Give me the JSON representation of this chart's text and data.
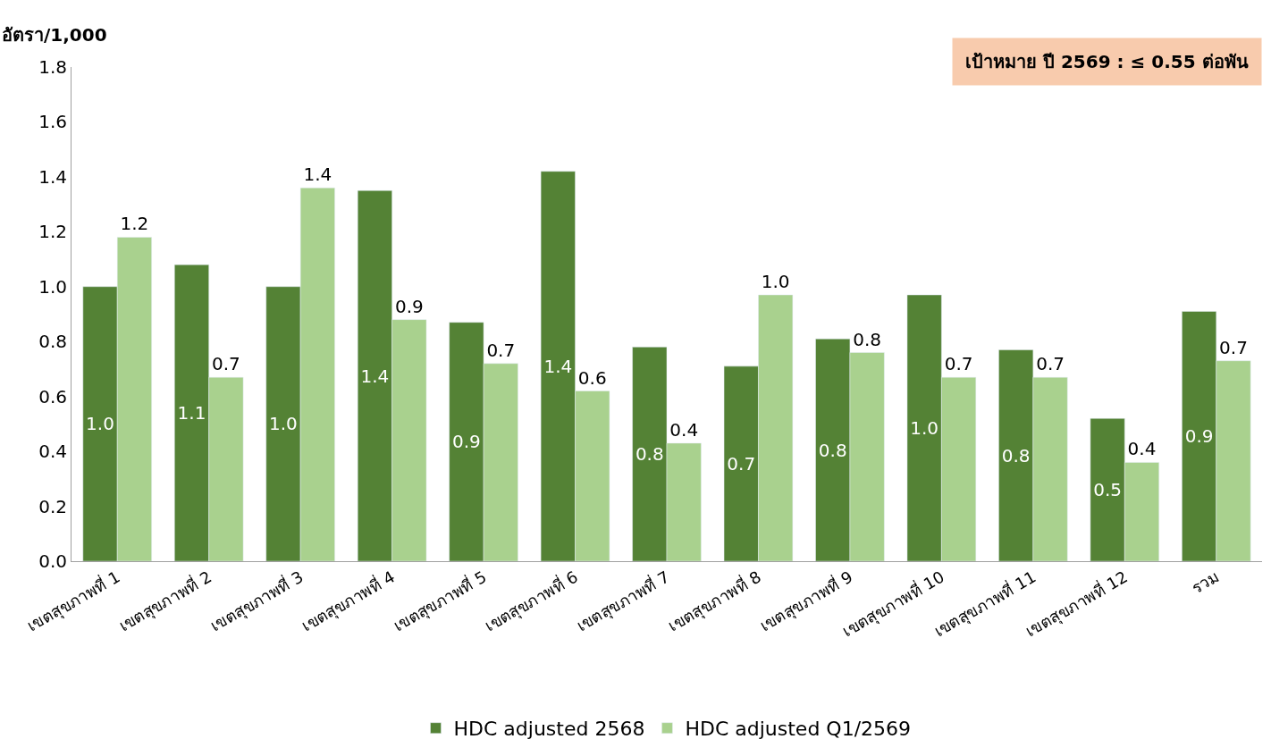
{
  "chart_data": {
    "type": "bar",
    "ylabel": "อัตรา/1,000",
    "categories": [
      "เขตสุขภาพที่ 1",
      "เขตสุขภาพที่ 2",
      "เขตสุขภาพที่ 3",
      "เขตสุขภาพที่ 4",
      "เขตสุขภาพที่ 5",
      "เขตสุขภาพที่ 6",
      "เขตสุขภาพที่ 7",
      "เขตสุขภาพที่ 8",
      "เขตสุขภาพที่ 9",
      "เขตสุขภาพที่ 10",
      "เขตสุขภาพที่ 11",
      "เขตสุขภาพที่ 12",
      "รวม"
    ],
    "series": [
      {
        "name": "HDC adjusted 2568",
        "color": "#548235",
        "values": [
          1.0,
          1.08,
          1.0,
          1.35,
          0.87,
          1.42,
          0.78,
          0.71,
          0.81,
          0.97,
          0.77,
          0.52,
          0.91
        ],
        "value_labels": [
          "1.0",
          "1.1",
          "1.0",
          "1.4",
          "0.9",
          "1.4",
          "0.8",
          "0.7",
          "0.8",
          "1.0",
          "0.8",
          "0.5",
          "0.9"
        ]
      },
      {
        "name": "HDC adjusted Q1/2569",
        "color": "#a9d18e",
        "values": [
          1.18,
          0.67,
          1.36,
          0.88,
          0.72,
          0.62,
          0.43,
          0.97,
          0.76,
          0.67,
          0.67,
          0.36,
          0.73
        ],
        "value_labels": [
          "1.2",
          "0.7",
          "1.4",
          "0.9",
          "0.7",
          "0.6",
          "0.4",
          "1.0",
          "0.8",
          "0.7",
          "0.7",
          "0.4",
          "0.7"
        ]
      }
    ],
    "ylim": [
      0,
      1.8
    ],
    "yticks": [
      {
        "value": 0,
        "label": "0.0"
      },
      {
        "value": 0.2,
        "label": "0.2"
      },
      {
        "value": 0.4,
        "label": "0.4"
      },
      {
        "value": 0.6,
        "label": "0.6"
      },
      {
        "value": 0.8,
        "label": "0.8"
      },
      {
        "value": 1.0,
        "label": "1.0"
      },
      {
        "value": 1.2,
        "label": "1.2"
      },
      {
        "value": 1.4,
        "label": "1.4"
      },
      {
        "value": 1.6,
        "label": "1.6"
      },
      {
        "value": 1.8,
        "label": "1.8"
      }
    ],
    "annotations": [
      "เป้าหมาย ปี 2569 : ≤ 0.55 ต่อพัน"
    ],
    "legend": "bottom"
  }
}
